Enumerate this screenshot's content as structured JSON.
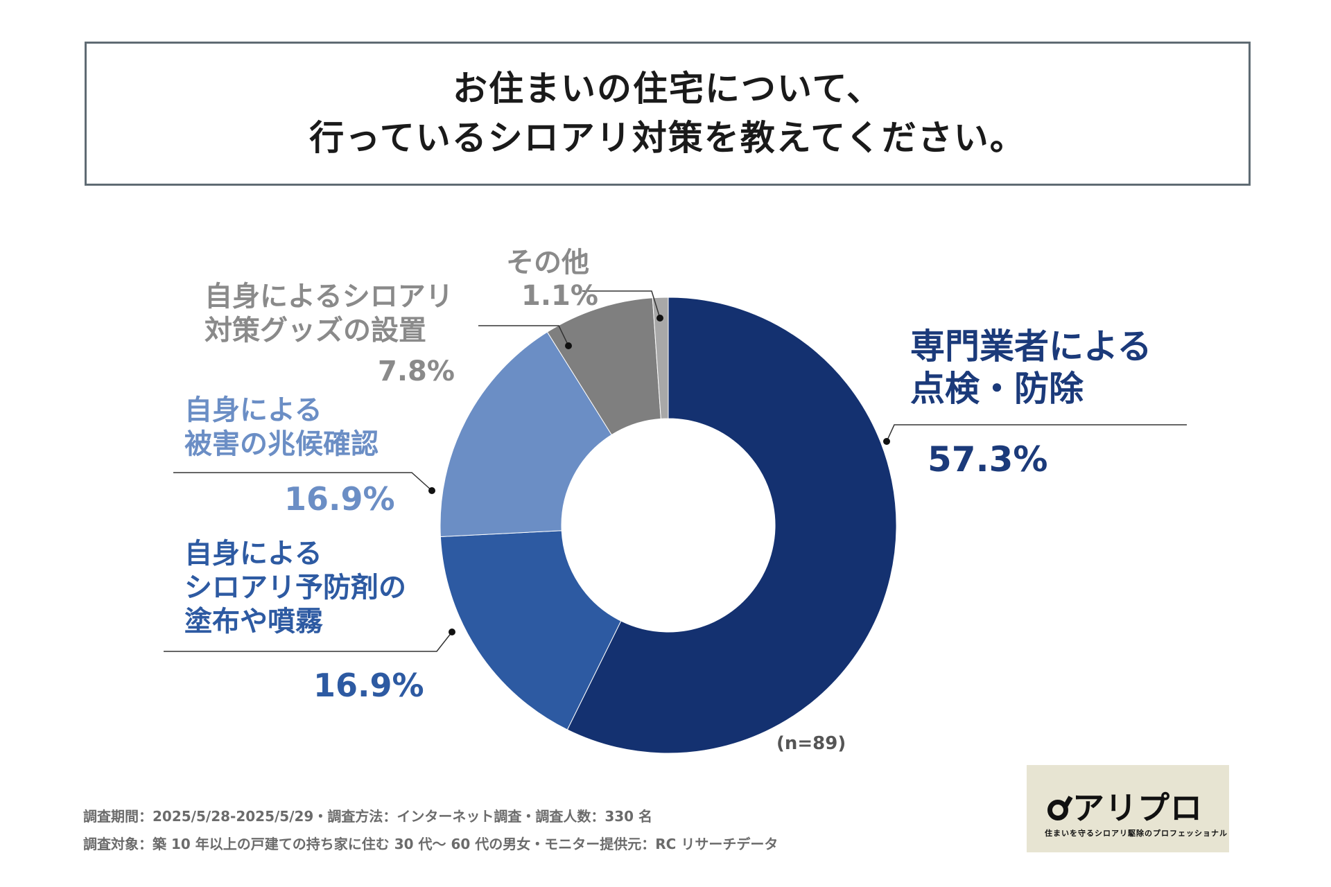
{
  "title": {
    "line1": "お住まいの住宅について、",
    "line2": "行っているシロアリ対策を教えてください。"
  },
  "chart_data": {
    "type": "pie",
    "variant": "donut",
    "start": "12 o'clock, clockwise",
    "slices": [
      {
        "label": "専門業者による\n点検・防除",
        "value": 57.3,
        "value_label": "57.3%",
        "color": "#143170"
      },
      {
        "label": "自身による\nシロアリ予防剤の\n塗布や噴霧",
        "value": 16.9,
        "value_label": "16.9%",
        "color": "#2d5aa2"
      },
      {
        "label": "自身による\n被害の兆候確認",
        "value": 16.9,
        "value_label": "16.9%",
        "color": "#6b8ec5"
      },
      {
        "label": "自身によるシロアリ\n対策グッズの設置",
        "value": 7.8,
        "value_label": "7.8%",
        "color": "#7f7f7f"
      },
      {
        "label": "その他",
        "value": 1.1,
        "value_label": "1.1%",
        "color": "#a8a8a8"
      }
    ],
    "label_colors": [
      "#1b3a7a",
      "#2d5aa2",
      "#6b8ec5",
      "#8a8a8a",
      "#8a8a8a"
    ],
    "n_label": "(n=89)"
  },
  "footnotes": {
    "line1": "調査期間：2025/5/28-2025/5/29・調査方法：インターネット調査・調査人数：330 名",
    "line2": "調査対象：築 10 年以上の戸建ての持ち家に住む 30 代〜 60 代の男女・モニター提供元：RC リサーチデータ"
  },
  "logo": {
    "name": "アリプロ",
    "tagline": "住まいを守るシロアリ駆除のプロフェッショナル",
    "icon": "ant-bug-icon"
  }
}
